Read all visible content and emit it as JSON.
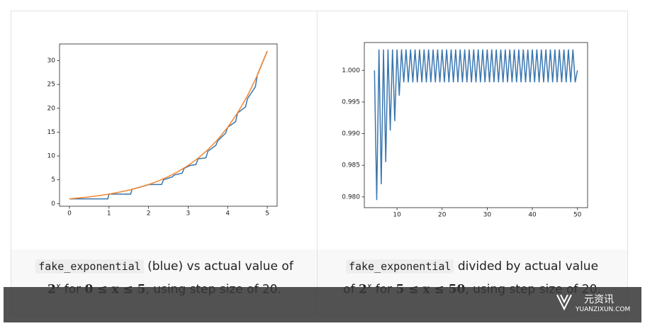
{
  "chart_data": [
    {
      "type": "line",
      "series": [
        {
          "name": "fake_exponential",
          "color": "#3a76af",
          "x": [
            0,
            0.97,
            1,
            1.55,
            1.58,
            1.98,
            2,
            2.33,
            2.38,
            2.6,
            2.65,
            2.85,
            2.9,
            3.05,
            3.2,
            3.25,
            3.45,
            3.5,
            3.7,
            3.75,
            3.95,
            4,
            4.2,
            4.25,
            4.45,
            4.5,
            4.7,
            4.75,
            5
          ],
          "values": [
            1,
            1,
            2,
            2,
            3,
            3.9,
            4,
            4,
            5,
            5.6,
            6,
            6.4,
            7.4,
            8,
            8.2,
            9.4,
            9.6,
            11,
            12.2,
            13.2,
            14.8,
            16,
            17.2,
            19,
            20.3,
            22,
            24.5,
            27,
            32
          ]
        },
        {
          "name": "2^x",
          "color": "#f5842b",
          "x": [
            0,
            0.25,
            0.5,
            0.75,
            1,
            1.25,
            1.5,
            1.75,
            2,
            2.25,
            2.5,
            2.75,
            3,
            3.25,
            3.5,
            3.75,
            4,
            4.25,
            4.5,
            4.75,
            5
          ],
          "values": [
            1,
            1.19,
            1.41,
            1.68,
            2,
            2.38,
            2.83,
            3.36,
            4,
            4.76,
            5.66,
            6.73,
            8,
            9.51,
            11.31,
            13.45,
            16,
            19.03,
            22.63,
            26.91,
            32
          ]
        }
      ],
      "xlim": [
        -0.25,
        5.25
      ],
      "ylim": [
        -0.55,
        33.5
      ],
      "xticks": [
        0,
        1,
        2,
        3,
        4,
        5
      ],
      "yticks": [
        0,
        5,
        10,
        15,
        20,
        25,
        30
      ]
    },
    {
      "type": "line",
      "series": [
        {
          "name": "fake_exponential / 2^x",
          "color": "#3a76af",
          "x": [
            5,
            5.5,
            6,
            6.5,
            7,
            7.5,
            8,
            8.5,
            9,
            9.5,
            10,
            10.5,
            11,
            11.5,
            12,
            12.5,
            13,
            13.5,
            14,
            14.5,
            15,
            15.5,
            16,
            16.5,
            17,
            17.5,
            18,
            18.5,
            19,
            19.5,
            20,
            20.5,
            21,
            21.5,
            22,
            22.5,
            23,
            23.5,
            24,
            24.5,
            25,
            25.5,
            26,
            26.5,
            27,
            27.5,
            28,
            28.5,
            29,
            29.5,
            30,
            30.5,
            31,
            31.5,
            32,
            32.5,
            33,
            33.5,
            34,
            34.5,
            35,
            35.5,
            36,
            36.5,
            37,
            37.5,
            38,
            38.5,
            39,
            39.5,
            40,
            40.5,
            41,
            41.5,
            42,
            42.5,
            43,
            43.5,
            44,
            44.5,
            45,
            45.5,
            46,
            46.5,
            47,
            47.5,
            48,
            48.5,
            49,
            49.5,
            50
          ],
          "values": [
            1.0,
            0.9795,
            1.0033,
            0.982,
            1.0033,
            0.9855,
            1.0033,
            0.9905,
            1.0033,
            0.992,
            1.0033,
            0.996,
            1.0033,
            0.9981,
            1.0033,
            0.9981,
            1.0033,
            0.9981,
            1.0033,
            0.9981,
            1.0033,
            0.9981,
            1.0033,
            0.9981,
            1.0033,
            0.9981,
            1.0033,
            0.9981,
            1.0033,
            0.9981,
            1.0033,
            0.9981,
            1.0033,
            0.9981,
            1.0033,
            0.9981,
            1.0033,
            0.9981,
            1.0033,
            0.9981,
            1.0033,
            0.9981,
            1.0033,
            0.9981,
            1.0033,
            0.9981,
            1.0033,
            0.9981,
            1.0033,
            0.9981,
            1.0033,
            0.9981,
            1.0033,
            0.9981,
            1.0033,
            0.9981,
            1.0033,
            0.9981,
            1.0033,
            0.9981,
            1.0033,
            0.9981,
            1.0033,
            0.9981,
            1.0033,
            0.9981,
            1.0033,
            0.9981,
            1.0033,
            0.9981,
            1.0033,
            0.9981,
            1.0033,
            0.9981,
            1.0033,
            0.9981,
            1.0033,
            0.9981,
            1.0033,
            0.9981,
            1.0033,
            0.9981,
            1.0033,
            0.9981,
            1.0033,
            0.9981,
            1.0033,
            0.9981,
            1.0033,
            0.9981,
            1.0
          ]
        }
      ],
      "xlim": [
        2.75,
        52.25
      ],
      "ylim": [
        0.9783,
        1.0044
      ],
      "xticks": [
        10,
        20,
        30,
        40,
        50
      ],
      "yticks": [
        {
          "value": 0.98,
          "label": "0.980"
        },
        {
          "value": 0.985,
          "label": "0.985"
        },
        {
          "value": 0.99,
          "label": "0.990"
        },
        {
          "value": 0.995,
          "label": "0.995"
        },
        {
          "value": 1.0,
          "label": "1.000"
        }
      ]
    }
  ],
  "captions": [
    {
      "code": "fake_exponential",
      "text": " (blue) vs actual value of",
      "base": "2",
      "exponent": "x",
      "text2": " for ",
      "range": "0 ≤ x ≤ 5",
      "text3": ", using step size of 20."
    },
    {
      "code": "fake_exponential",
      "text": " divided by actual value",
      "text1b": "of ",
      "base": "2",
      "exponent": "x",
      "text2": " for ",
      "range": "5 ≤ x ≤ 50",
      "text3": ", using step size of 20."
    }
  ],
  "watermark": {
    "name": "元资讯",
    "site": "YUANZIXUN.COM"
  }
}
